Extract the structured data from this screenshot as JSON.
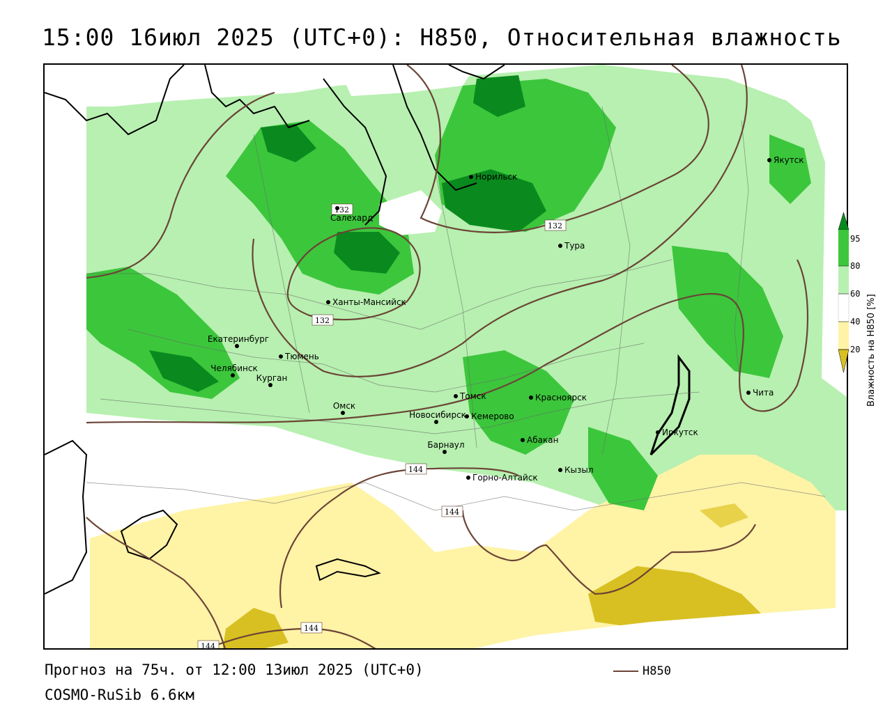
{
  "title": "15:00 16июл 2025 (UTC+0): H850, Относительная влажность",
  "footer": {
    "forecast": "Прогноз на 75ч. от 12:00 13июл 2025 (UTC+0)",
    "model": "COSMO-RuSib 6.6км"
  },
  "line_legend": {
    "label": "H850",
    "color": "#6b4436"
  },
  "legend": {
    "title": "Влажность на H850 [%]",
    "ticks": [
      "20",
      "40",
      "60",
      "80",
      "95"
    ],
    "colors": {
      "lt20": "#d8c022",
      "20_40": "#fff3a6",
      "40_60": "#ffffff",
      "60_80": "#b7f0b0",
      "80_95": "#3cc63c",
      "gt95": "#0a8a1e"
    }
  },
  "cities": [
    {
      "name": "Якутск"
    },
    {
      "name": "Норильск"
    },
    {
      "name": "Салехард"
    },
    {
      "name": "Тура"
    },
    {
      "name": "Ханты-Мансийск"
    },
    {
      "name": "Екатеринбург"
    },
    {
      "name": "Тюмень"
    },
    {
      "name": "Челябинск"
    },
    {
      "name": "Курган"
    },
    {
      "name": "Томск"
    },
    {
      "name": "Красноярск"
    },
    {
      "name": "Чита"
    },
    {
      "name": "Омск"
    },
    {
      "name": "Новосибирск"
    },
    {
      "name": "Кемерово"
    },
    {
      "name": "Абакан"
    },
    {
      "name": "Иркутск"
    },
    {
      "name": "Барнаул"
    },
    {
      "name": "Горно-Алтайск"
    },
    {
      "name": "Кызыл"
    }
  ],
  "isolines": [
    {
      "label": "132"
    },
    {
      "label": "132"
    },
    {
      "label": "132"
    },
    {
      "label": "144"
    },
    {
      "label": "144"
    },
    {
      "label": "144"
    },
    {
      "label": "144"
    }
  ]
}
